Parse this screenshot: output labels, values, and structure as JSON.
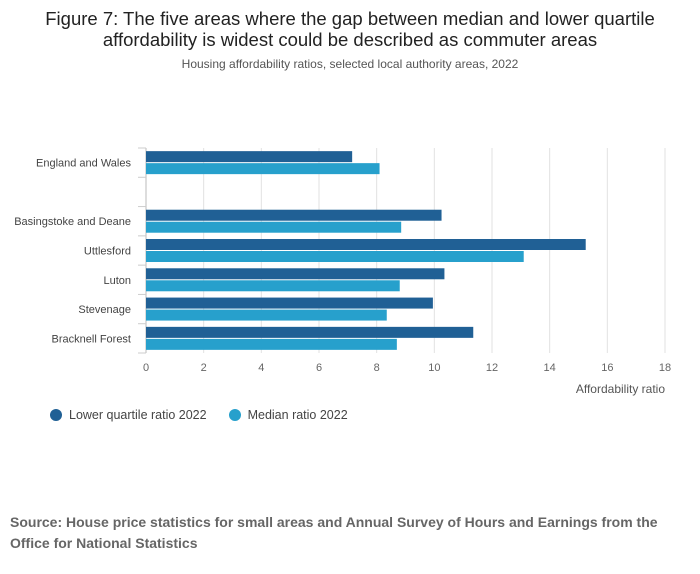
{
  "title": "Figure 7: The five areas where the gap between median and lower quartile affordability is widest could be described as commuter areas",
  "subtitle": "Housing affordability ratios, selected local authority areas, 2022",
  "source": "Source: House price statistics for small areas and Annual Survey of Hours and Earnings from the Office for National Statistics",
  "chart_data": {
    "type": "bar",
    "orientation": "horizontal",
    "categories": [
      "England and Wales",
      "",
      "Basingstoke and Deane",
      "Uttlesford",
      "Luton",
      "Stevenage",
      "Bracknell Forest"
    ],
    "series": [
      {
        "name": "Lower quartile ratio 2022",
        "color": "#206095",
        "values": [
          7.15,
          null,
          10.25,
          15.25,
          10.35,
          9.95,
          11.35
        ]
      },
      {
        "name": "Median ratio 2022",
        "color": "#27a0cc",
        "values": [
          8.1,
          null,
          8.85,
          13.1,
          8.8,
          8.35,
          8.7
        ]
      }
    ],
    "xlabel": "Affordability ratio",
    "xlim": [
      0,
      18
    ],
    "xticks": [
      "0",
      "2",
      "4",
      "6",
      "8",
      "10",
      "12",
      "14",
      "16",
      "18"
    ],
    "grid": true,
    "legend": "bottom-left"
  }
}
